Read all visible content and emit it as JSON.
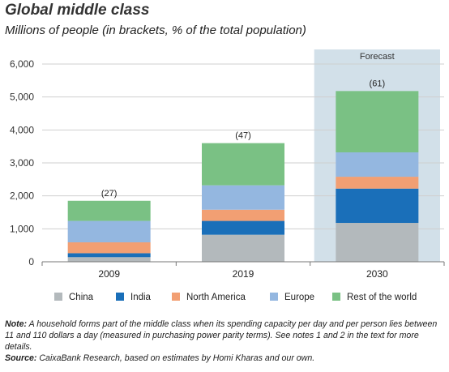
{
  "title": "Global middle class",
  "subtitle": "Millions of people (in brackets, % of the total population)",
  "forecast_label": "Forecast",
  "note": {
    "label": "Note:",
    "text": " A household forms part of the middle class when its spending capacity per day and per person lies between 11 and 110 dollars a day (measured in purchasing power parity terms). See notes 1 and 2 in the text for more details."
  },
  "source": {
    "label": "Source:",
    "text": " CaixaBank Research, based on estimates by Homi Kharas and our own."
  },
  "colors": {
    "China": "#b3b9bc",
    "India": "#1a6fb9",
    "North America": "#f29f73",
    "Europe": "#94b7e0",
    "Rest of the world": "#7ac184",
    "forecast_band": "#d2e0e9",
    "grid": "#cfcfcf"
  },
  "chart_data": {
    "type": "bar",
    "stacked": true,
    "categories": [
      "2009",
      "2019",
      "2030"
    ],
    "series": [
      {
        "name": "China",
        "values": [
          140,
          820,
          1180
        ]
      },
      {
        "name": "India",
        "values": [
          120,
          420,
          1040
        ]
      },
      {
        "name": "North America",
        "values": [
          330,
          340,
          360
        ]
      },
      {
        "name": "Europe",
        "values": [
          650,
          740,
          740
        ]
      },
      {
        "name": "Rest of the world",
        "values": [
          610,
          1280,
          1860
        ]
      }
    ],
    "bar_labels": [
      "(27)",
      "(47)",
      "(61)"
    ],
    "forecast_categories": [
      "2030"
    ],
    "ylim": [
      0,
      6000
    ],
    "yticks": [
      "0",
      "1,000",
      "2,000",
      "3,000",
      "4,000",
      "5,000",
      "6,000"
    ],
    "ytick_values": [
      0,
      1000,
      2000,
      3000,
      4000,
      5000,
      6000
    ],
    "grid": true,
    "legend_position": "bottom"
  }
}
